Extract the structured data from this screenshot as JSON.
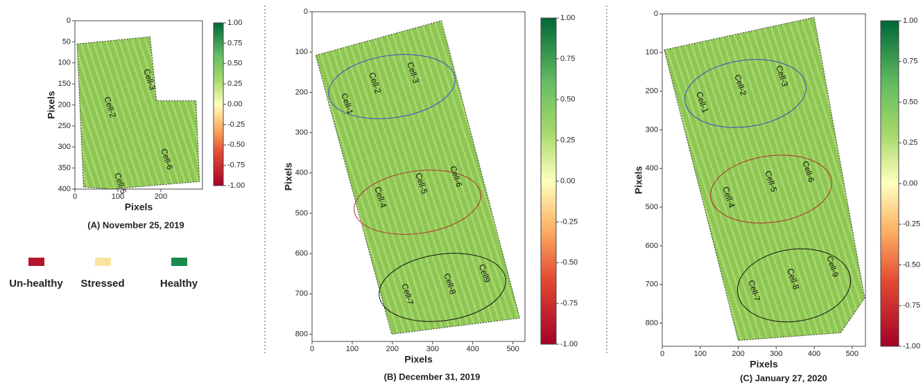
{
  "chart_data": [
    {
      "type": "image",
      "caption": "(A) November 25, 2019",
      "xlabel": "Pixels",
      "ylabel": "Pixels",
      "xlim": [
        0,
        297
      ],
      "ylim": [
        400,
        0
      ],
      "xticks": [
        0,
        100,
        200
      ],
      "yticks": [
        0,
        50,
        100,
        150,
        200,
        250,
        300,
        350,
        400
      ],
      "clim": [
        -1,
        1
      ],
      "cticks": [
        {
          "value": 1,
          "label": "1.00"
        },
        0.75,
        {
          "value": 0.5,
          "label": "0.50"
        },
        0.25,
        {
          "value": 0,
          "label": "0.00"
        },
        -0.25,
        {
          "value": -0.5,
          "label": "-0.50"
        },
        -0.75,
        {
          "value": -1,
          "label": "-1.00"
        }
      ],
      "annotations": [
        "Cell-2",
        "Cell-3",
        "Cell-5",
        "Cell-6"
      ]
    },
    {
      "type": "image",
      "caption": "(B) December 31, 2019",
      "xlabel": "Pixels",
      "ylabel": "Pixels",
      "xlim": [
        0,
        530
      ],
      "ylim": [
        818,
        0
      ],
      "xticks": [
        0,
        100,
        200,
        300,
        400,
        500
      ],
      "yticks": [
        0,
        100,
        200,
        300,
        400,
        500,
        600,
        700,
        800
      ],
      "clim": [
        -1,
        1
      ],
      "cticks": [
        {
          "value": 1,
          "label": "1.00"
        },
        0.75,
        {
          "value": 0.5,
          "label": "0.50"
        },
        0.25,
        {
          "value": 0,
          "label": "0.00"
        },
        -0.25,
        {
          "value": -0.5,
          "label": "-0.50"
        },
        -0.75,
        {
          "value": -1,
          "label": "-1.00"
        }
      ],
      "annotations": [
        "Cell-1",
        "Cell-2",
        "Cell-3",
        "Cell-4",
        "Cell-5",
        "Cell-6",
        "Cell-7",
        "Cell-8",
        "Cell9"
      ]
    },
    {
      "type": "image",
      "caption": "(C) January 27, 2020",
      "xlabel": "Pixels",
      "ylabel": "Pixels",
      "xlim": [
        0,
        535
      ],
      "ylim": [
        860,
        0
      ],
      "xticks": [
        0,
        100,
        200,
        300,
        400,
        500
      ],
      "yticks": [
        0,
        100,
        200,
        300,
        400,
        500,
        600,
        700,
        800
      ],
      "clim": [
        -1,
        1
      ],
      "cticks": [
        {
          "value": 1,
          "label": "1.00"
        },
        0.75,
        {
          "value": 0.5,
          "label": "0.50"
        },
        0.25,
        {
          "value": 0,
          "label": "0.00"
        },
        -0.25,
        {
          "value": -0.5,
          "label": "-0.50"
        },
        -0.75,
        {
          "value": -1,
          "label": "-1.00"
        }
      ],
      "annotations": [
        "Cell-1",
        "Cell-2",
        "Cell-3",
        "Cell-4",
        "Cell-5",
        "Cell-6",
        "Cell-7",
        "Cell-8",
        "Cell-9"
      ]
    }
  ],
  "legend": [
    {
      "label": "Un-healthy",
      "color": "#b5152b"
    },
    {
      "label": "Stressed",
      "color": "#fbe3a0"
    },
    {
      "label": "Healthy",
      "color": "#1a8a4a"
    }
  ]
}
